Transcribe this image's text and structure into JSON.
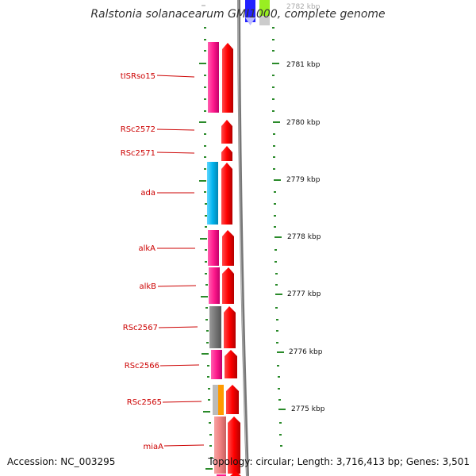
{
  "title": "Ralstonia solanacearum GMI1000, complete genome",
  "footer": {
    "accession": "Accession: NC_003295",
    "topology": "Topology: circular; Length: 3,716,413 bp; Genes: 3,501"
  },
  "colors": {
    "cds": "#ff0000",
    "gene_pink": "#ff1a8c",
    "gene_cyan": "#00b4ee",
    "gene_gray": "#777777",
    "gene_light_gray": "#bbbbbb",
    "gene_orange": "#ff9a00",
    "gene_salmon": "#f08080",
    "backbone": "#888888",
    "ticks": "#2a8a2a",
    "label": "#cc0000"
  },
  "tick_labels": [
    "2782 kbp",
    "2781 kbp",
    "2780 kbp",
    "2779 kbp",
    "2778 kbp",
    "2777 kbp",
    "2776 kbp",
    "2775 kbp"
  ],
  "gene_labels": [
    "tISRso15",
    "RSc2572",
    "RSc2571",
    "ada",
    "alkA",
    "alkB",
    "RSc2567",
    "RSc2566",
    "RSc2565",
    "miaA"
  ]
}
